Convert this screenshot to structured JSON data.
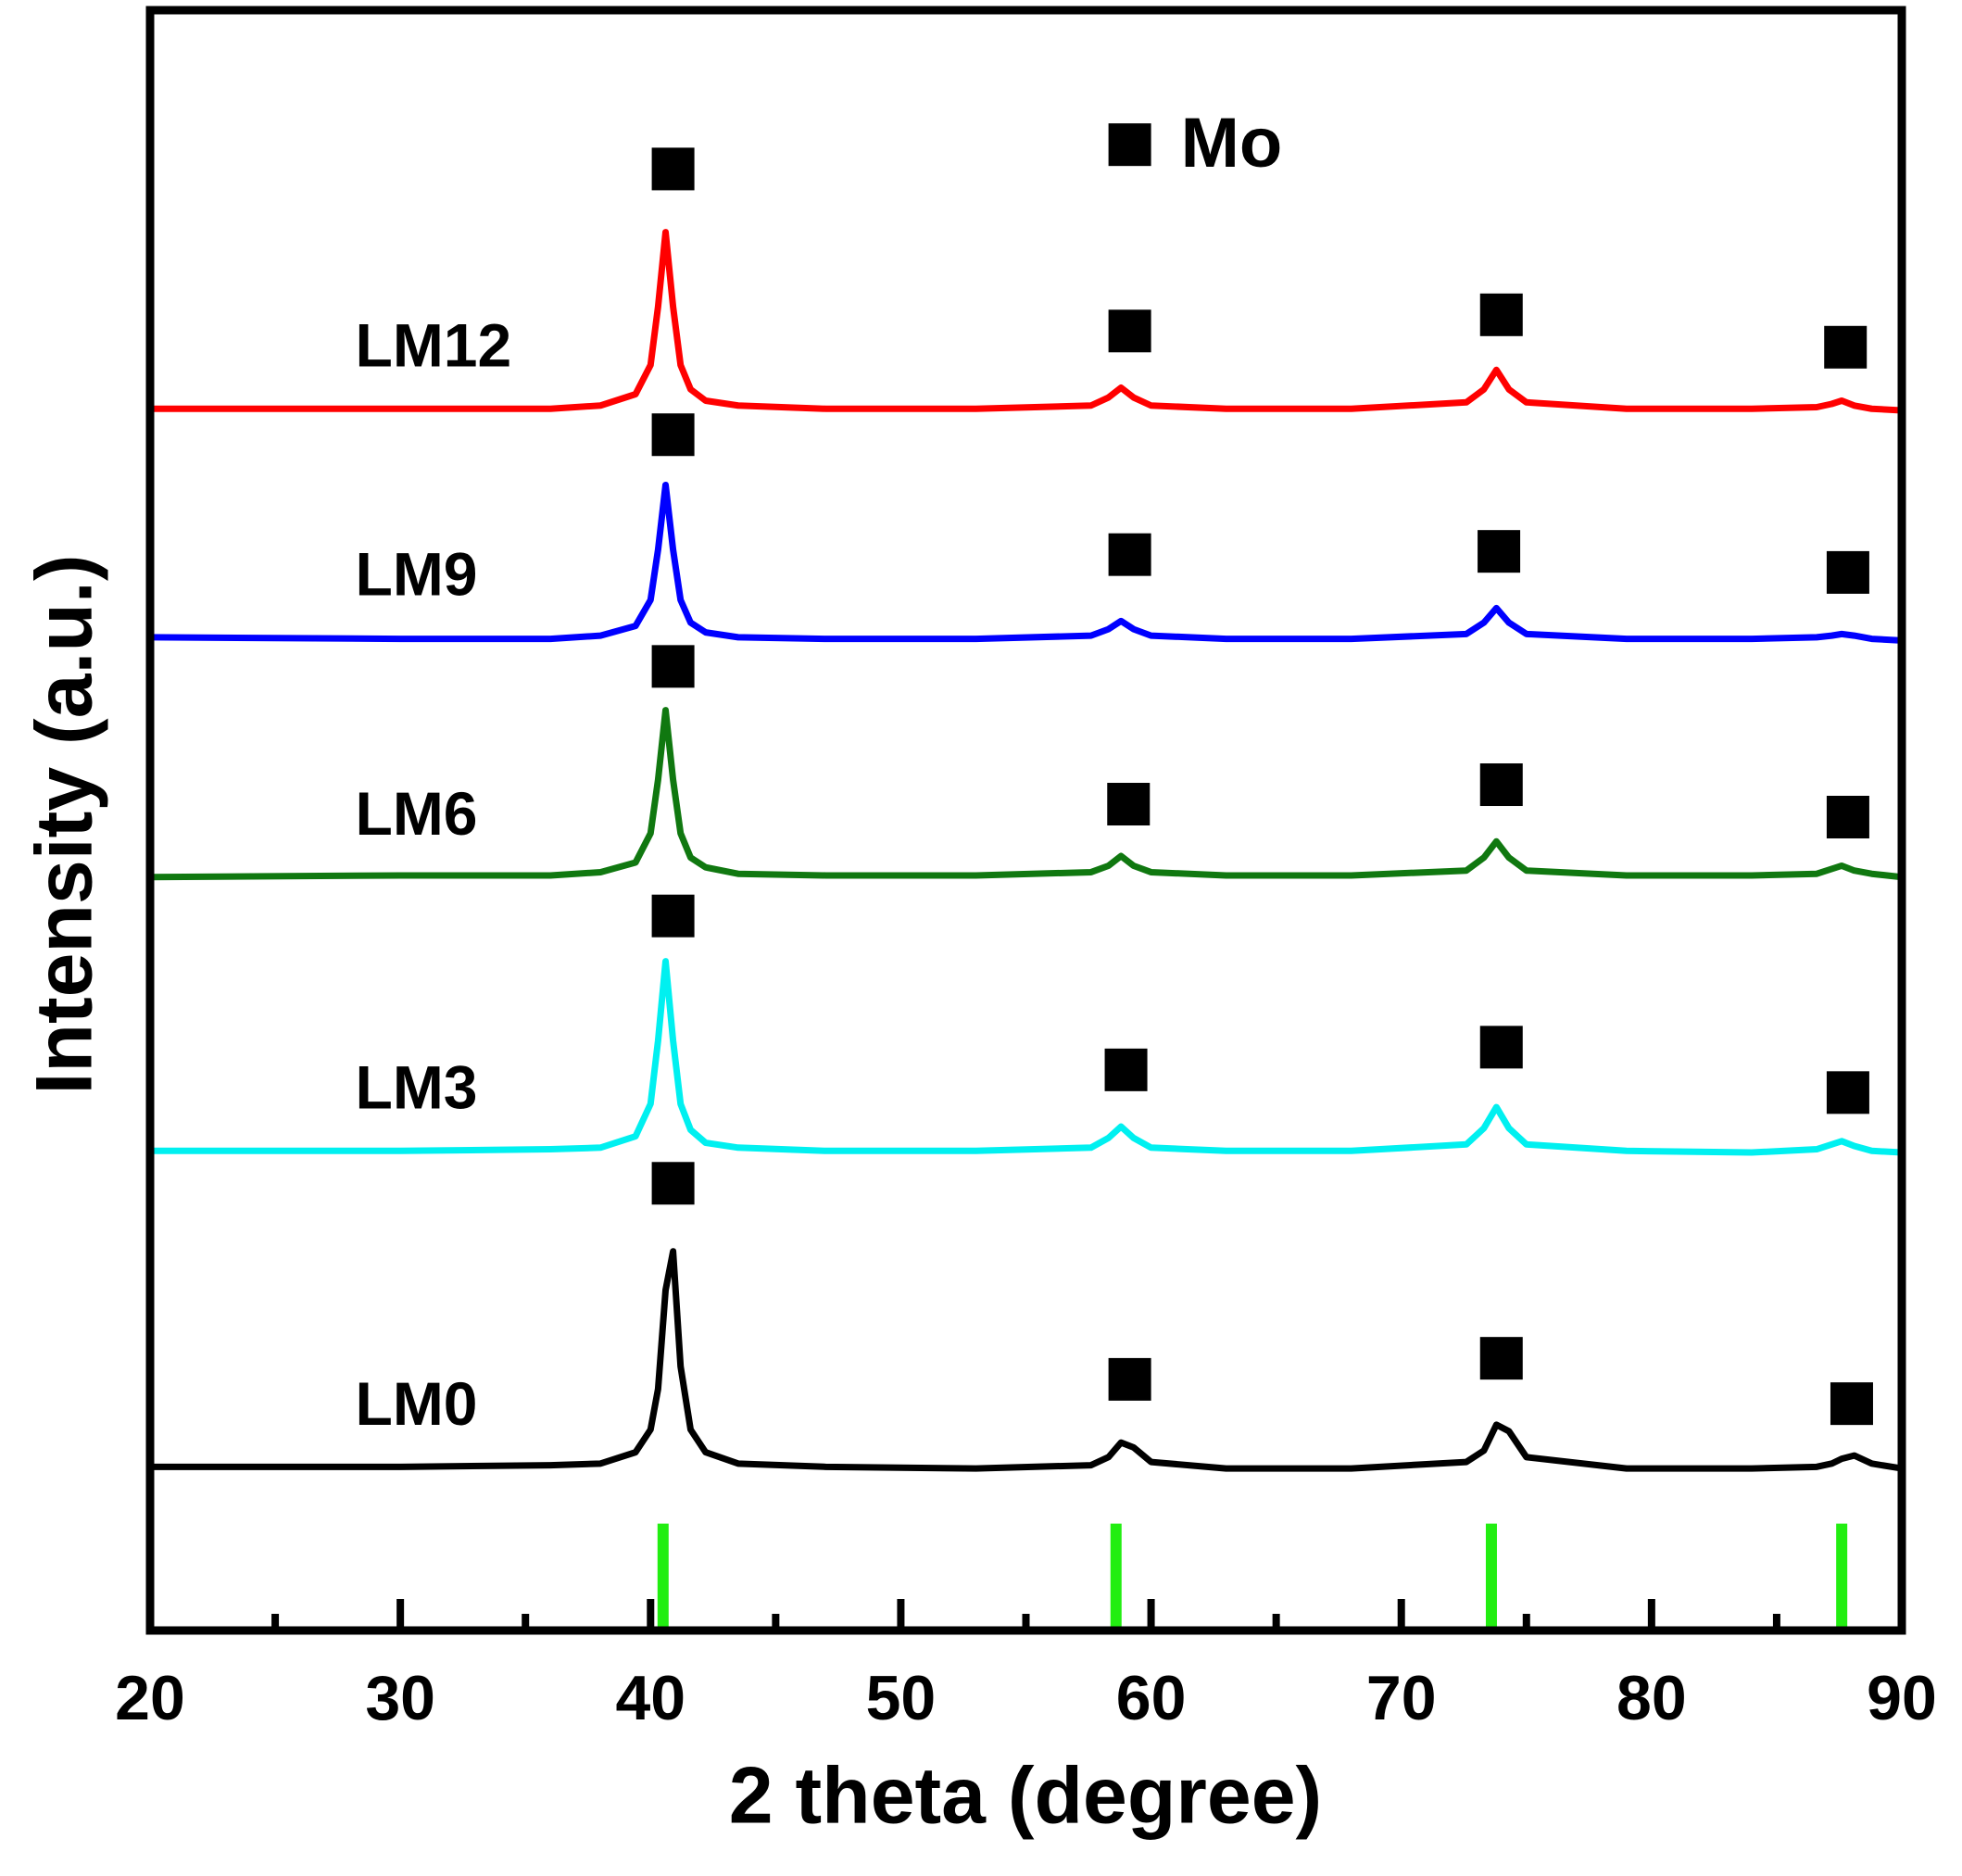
{
  "chart_data": {
    "type": "line",
    "x_label": "2 theta (degree)",
    "y_label": "Intensity (a.u.)",
    "xlim": [
      20,
      90
    ],
    "ylim": [
      0,
      100
    ],
    "xticks": [
      20,
      30,
      40,
      50,
      60,
      70,
      80,
      90
    ],
    "xminor": [
      25,
      35,
      45,
      55,
      65,
      75,
      85
    ],
    "x": [
      20,
      30,
      36,
      38,
      39.4,
      40,
      40.3,
      40.6,
      40.9,
      41.2,
      41.6,
      42.2,
      43.5,
      47,
      53,
      57.6,
      58.3,
      58.8,
      59.3,
      60,
      63,
      68,
      72.6,
      73.3,
      73.8,
      74.3,
      75,
      79,
      84,
      86.6,
      87.2,
      87.6,
      88.1,
      88.8,
      90
    ],
    "series": [
      {
        "name": "LM0",
        "color": "#000000",
        "values": [
          10.1,
          10.1,
          10.2,
          10.3,
          11.0,
          12.4,
          14.9,
          21.0,
          23.4,
          16.3,
          12.4,
          11.0,
          10.3,
          10.1,
          10.0,
          10.2,
          10.7,
          11.6,
          11.3,
          10.4,
          10.0,
          10.0,
          10.4,
          11.1,
          12.7,
          12.3,
          10.7,
          10.0,
          10.0,
          10.1,
          10.3,
          10.6,
          10.8,
          10.3,
          10.0
        ]
      },
      {
        "name": "LM3",
        "color": "#00f0f0",
        "values": [
          29.6,
          29.6,
          29.7,
          29.8,
          30.5,
          32.5,
          36.4,
          41.3,
          36.4,
          32.5,
          30.9,
          30.1,
          29.8,
          29.6,
          29.6,
          29.8,
          30.4,
          31.1,
          30.4,
          29.8,
          29.6,
          29.6,
          30.0,
          31.0,
          32.3,
          31.0,
          30.0,
          29.6,
          29.5,
          29.7,
          30.0,
          30.2,
          29.9,
          29.6,
          29.5
        ]
      },
      {
        "name": "LM6",
        "color": "#107810",
        "values": [
          46.5,
          46.6,
          46.6,
          46.8,
          47.4,
          49.2,
          52.5,
          56.8,
          52.5,
          49.2,
          47.7,
          47.1,
          46.7,
          46.6,
          46.6,
          46.8,
          47.2,
          47.8,
          47.2,
          46.8,
          46.6,
          46.6,
          46.9,
          47.7,
          48.7,
          47.7,
          46.9,
          46.6,
          46.6,
          46.7,
          47.0,
          47.2,
          46.9,
          46.7,
          46.5
        ]
      },
      {
        "name": "LM9",
        "color": "#0000ff",
        "values": [
          61.3,
          61.2,
          61.2,
          61.4,
          62.0,
          63.6,
          66.7,
          70.7,
          66.7,
          63.6,
          62.2,
          61.6,
          61.3,
          61.2,
          61.2,
          61.4,
          61.8,
          62.3,
          61.8,
          61.4,
          61.2,
          61.2,
          61.5,
          62.2,
          63.1,
          62.2,
          61.5,
          61.2,
          61.2,
          61.3,
          61.4,
          61.5,
          61.4,
          61.2,
          61.1
        ]
      },
      {
        "name": "LM12",
        "color": "#ff0000",
        "values": [
          75.4,
          75.4,
          75.4,
          75.6,
          76.3,
          78.1,
          81.7,
          86.3,
          81.7,
          78.1,
          76.6,
          75.9,
          75.6,
          75.4,
          75.4,
          75.6,
          76.1,
          76.7,
          76.1,
          75.6,
          75.4,
          75.4,
          75.8,
          76.6,
          77.8,
          76.6,
          75.8,
          75.4,
          75.4,
          75.5,
          75.7,
          75.9,
          75.6,
          75.4,
          75.3
        ]
      }
    ],
    "reference_lines": {
      "color": "#22ee11",
      "x": [
        40.5,
        58.6,
        73.6,
        87.6
      ],
      "values": [
        6.6,
        6.6,
        6.6,
        6.6
      ]
    },
    "peak_markers": {
      "x": [
        40.9,
        59.15,
        74.0,
        87.75,
        40.9,
        59.15,
        73.9,
        87.85,
        40.9,
        59.1,
        74.0,
        87.85,
        40.9,
        59.0,
        74.0,
        87.85,
        40.9,
        59.15,
        74.0,
        88.0
      ],
      "y": [
        90.2,
        80.2,
        81.2,
        79.2,
        73.8,
        66.4,
        66.6,
        65.3,
        59.5,
        51.0,
        52.2,
        50.2,
        44.1,
        34.6,
        36.0,
        33.2,
        27.6,
        15.5,
        16.8,
        14.0
      ]
    },
    "legend": {
      "label": "Mo",
      "x": 59.15,
      "y": 91.7
    }
  }
}
